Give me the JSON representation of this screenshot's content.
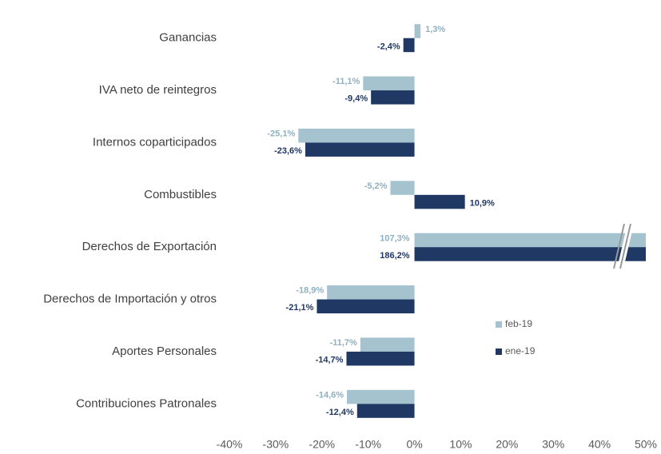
{
  "chart_data": {
    "type": "hbar",
    "categories": [
      "Ganancias",
      "IVA neto de reintegros",
      "Internos coparticipados",
      "Combustibles",
      "Derechos de Exportación",
      "Derechos de Importación y otros",
      "Aportes Personales",
      "Contribuciones Patronales"
    ],
    "series": [
      {
        "name": "feb-19",
        "color": "#a5c2cf",
        "values": [
          1.3,
          -11.1,
          -25.1,
          -5.2,
          107.3,
          -18.9,
          -11.7,
          -14.6
        ],
        "value_labels": [
          "1,3%",
          "-11,1%",
          "-25,1%",
          "-5,2%",
          "107,3%",
          "-18,9%",
          "-11,7%",
          "-14,6%"
        ]
      },
      {
        "name": "ene-19",
        "color": "#1f3864",
        "values": [
          -2.4,
          -9.4,
          -23.6,
          10.9,
          186.2,
          -21.1,
          -14.7,
          -12.4
        ],
        "value_labels": [
          "-2,4%",
          "-9,4%",
          "-23,6%",
          "10,9%",
          "186,2%",
          "-21,1%",
          "-14,7%",
          "-12,4%"
        ]
      }
    ],
    "xlim": [
      -40,
      50
    ],
    "xticks": [
      {
        "value": -40,
        "label": "-40%"
      },
      {
        "value": -30,
        "label": "-30%"
      },
      {
        "value": -20,
        "label": "-20%"
      },
      {
        "value": -10,
        "label": "-10%"
      },
      {
        "value": 0,
        "label": "0%"
      },
      {
        "value": 10,
        "label": "10%"
      },
      {
        "value": 20,
        "label": "20%"
      },
      {
        "value": 30,
        "label": "30%"
      },
      {
        "value": 40,
        "label": "40%"
      },
      {
        "value": 50,
        "label": "50%"
      }
    ],
    "grid": true
  }
}
